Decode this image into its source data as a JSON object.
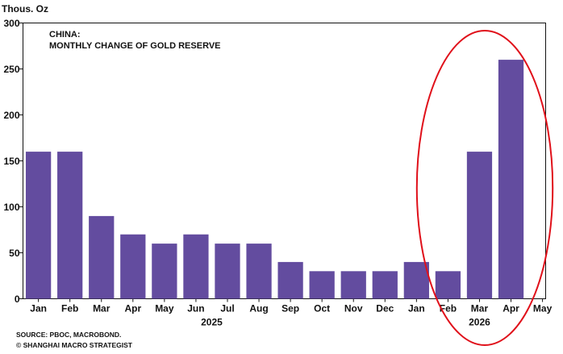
{
  "chart_data": {
    "type": "bar",
    "title": "CHINA:",
    "subtitle": "MONTHLY CHANGE OF GOLD RESERVE",
    "unit_label": "Thous. Oz",
    "categories": [
      "Jan",
      "Feb",
      "Mar",
      "Apr",
      "May",
      "Jun",
      "Jul",
      "Aug",
      "Sep",
      "Oct",
      "Nov",
      "Dec",
      "Jan",
      "Feb",
      "Mar",
      "Apr",
      "May"
    ],
    "values": [
      160,
      160,
      90,
      70,
      60,
      70,
      60,
      60,
      40,
      30,
      30,
      30,
      40,
      30,
      160,
      260,
      null
    ],
    "year_labels": [
      {
        "label": "2025",
        "span": [
          0,
          11
        ]
      },
      {
        "label": "2026",
        "span": [
          12,
          16
        ]
      }
    ],
    "ylim": [
      0,
      300
    ],
    "yticks": [
      0,
      50,
      100,
      150,
      200,
      250,
      300
    ],
    "grid": false,
    "highlight": {
      "shape": "ellipse",
      "covers": [
        13,
        16
      ],
      "color": "#e0101a"
    },
    "bar_color": "#634c9f",
    "source": "SOURCE: PBOC, MACROBOND.",
    "copyright": "© SHANGHAI MACRO STRATEGIST"
  }
}
